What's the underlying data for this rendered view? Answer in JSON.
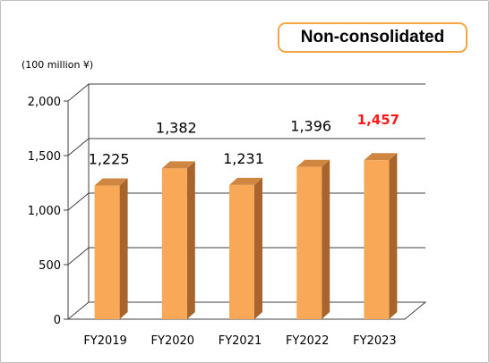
{
  "badge": {
    "label": "Non-consolidated"
  },
  "unit_label": "(100 million ¥)",
  "chart_data": {
    "type": "bar",
    "title": "",
    "xlabel": "",
    "ylabel": "(100 million ¥)",
    "categories": [
      "FY2019",
      "FY2020",
      "FY2021",
      "FY2022",
      "FY2023"
    ],
    "values": [
      1225,
      1382,
      1231,
      1396,
      1457
    ],
    "data_labels": [
      "1,225",
      "1,382",
      "1,231",
      "1,396",
      "1,457"
    ],
    "highlight_index": 4,
    "ylim": [
      0,
      2000
    ],
    "yticks": [
      0,
      500,
      1000,
      1500,
      2000
    ],
    "ytick_labels": [
      "0",
      "500",
      "1,000",
      "1,500",
      "2,000"
    ],
    "grid": true,
    "style": "3d",
    "colors": {
      "bar_front": "#f8a857",
      "bar_side": "#a8642a",
      "bar_top": "#cf8640",
      "highlight_label": "#ff1a1a",
      "badge_border": "#f4a640",
      "grid": "#404040"
    }
  }
}
